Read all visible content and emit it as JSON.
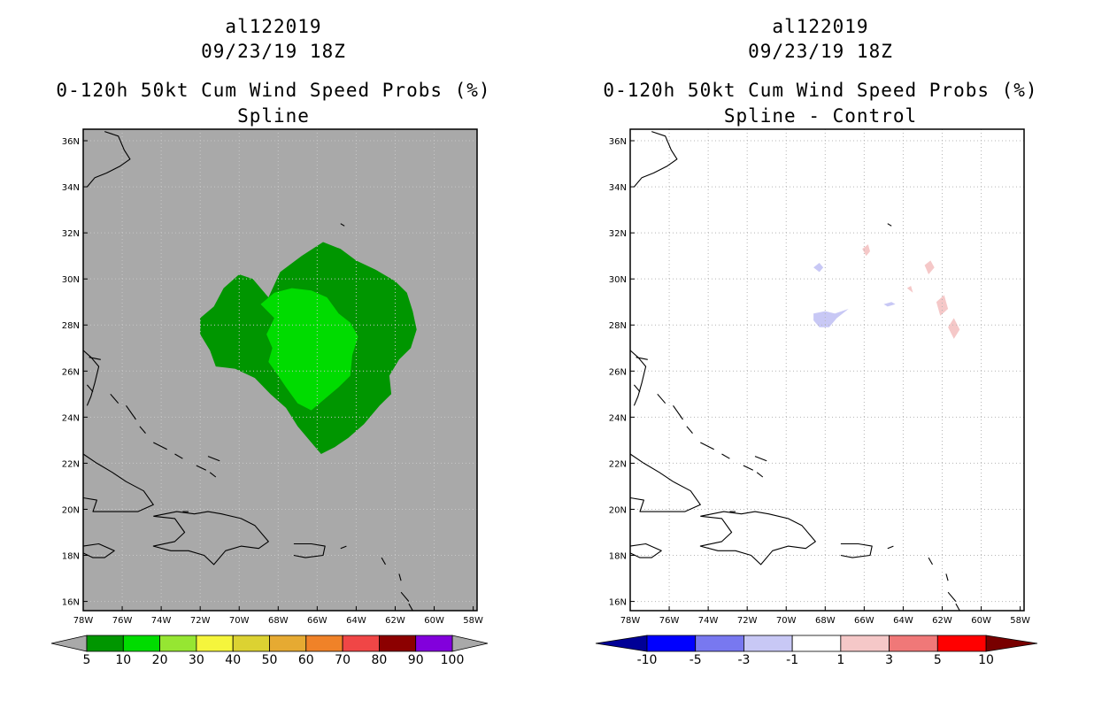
{
  "left": {
    "title_storm": "al122019",
    "title_date": "09/23/19 18Z",
    "title_product": "0-120h 50kt Cum Wind Speed Probs (%)",
    "title_method": "Spline",
    "background_color": "#a9a9a9",
    "colorbar": {
      "colors": [
        "#009600",
        "#00dc00",
        "#96e632",
        "#f5f53c",
        "#dcd232",
        "#e6aa32",
        "#f08228",
        "#f04646",
        "#8c0000",
        "#8200dc"
      ],
      "labels": [
        "5",
        "10",
        "20",
        "30",
        "40",
        "50",
        "60",
        "70",
        "80",
        "90",
        "100"
      ],
      "under_color": "#a9a9a9",
      "over_color": "#a9a9a9"
    }
  },
  "right": {
    "title_storm": "al122019",
    "title_date": "09/23/19 18Z",
    "title_product": "0-120h 50kt Cum Wind Speed Probs (%)",
    "title_method": "Spline - Control",
    "background_color": "#ffffff",
    "colorbar": {
      "colors": [
        "#0000ff",
        "#7878f0",
        "#c8c8f5",
        "#ffffff",
        "#f5c8c8",
        "#f07878",
        "#ff0000"
      ],
      "labels": [
        "-10",
        "-5",
        "-3",
        "-1",
        "1",
        "3",
        "5",
        "10"
      ],
      "under_color": "#000096",
      "over_color": "#780000"
    }
  },
  "axes": {
    "lat_labels": [
      "16N",
      "18N",
      "20N",
      "22N",
      "24N",
      "26N",
      "28N",
      "30N",
      "32N",
      "34N",
      "36N"
    ],
    "lon_labels": [
      "78W",
      "76W",
      "74W",
      "72W",
      "70W",
      "68W",
      "66W",
      "64W",
      "62W",
      "60W",
      "58W"
    ]
  },
  "map_data": {
    "lat_range": [
      15.6,
      36.5
    ],
    "lon_range": [
      -78,
      -57.8
    ],
    "prob_contours": [
      {
        "level": 5,
        "color": "#009600",
        "points": [
          [
            -68.5,
            29.2
          ],
          [
            -67.9,
            30.3
          ],
          [
            -66.8,
            31.0
          ],
          [
            -65.7,
            31.6
          ],
          [
            -64.8,
            31.3
          ],
          [
            -64.0,
            30.8
          ],
          [
            -63.0,
            30.4
          ],
          [
            -62.0,
            29.9
          ],
          [
            -61.4,
            29.4
          ],
          [
            -61.1,
            28.6
          ],
          [
            -60.9,
            27.8
          ],
          [
            -61.2,
            27.0
          ],
          [
            -61.8,
            26.5
          ],
          [
            -62.3,
            25.8
          ],
          [
            -62.2,
            25.0
          ],
          [
            -62.8,
            24.5
          ],
          [
            -63.6,
            23.7
          ],
          [
            -64.4,
            23.1
          ],
          [
            -65.1,
            22.7
          ],
          [
            -65.8,
            22.4
          ],
          [
            -66.3,
            22.9
          ],
          [
            -67.0,
            23.6
          ],
          [
            -67.6,
            24.4
          ],
          [
            -68.4,
            25.0
          ],
          [
            -69.2,
            25.7
          ],
          [
            -70.2,
            26.1
          ],
          [
            -71.2,
            26.2
          ],
          [
            -71.5,
            26.9
          ],
          [
            -72.0,
            27.6
          ],
          [
            -72.0,
            28.3
          ],
          [
            -71.3,
            28.8
          ],
          [
            -70.8,
            29.6
          ],
          [
            -70.0,
            30.2
          ],
          [
            -69.3,
            30.0
          ]
        ]
      },
      {
        "level": 10,
        "color": "#00dc00",
        "points": [
          [
            -68.9,
            28.9
          ],
          [
            -68.2,
            29.4
          ],
          [
            -67.3,
            29.6
          ],
          [
            -66.3,
            29.5
          ],
          [
            -65.5,
            29.2
          ],
          [
            -64.9,
            28.5
          ],
          [
            -64.3,
            28.1
          ],
          [
            -63.9,
            27.5
          ],
          [
            -64.2,
            26.7
          ],
          [
            -64.3,
            25.8
          ],
          [
            -64.9,
            25.3
          ],
          [
            -65.6,
            24.8
          ],
          [
            -66.3,
            24.3
          ],
          [
            -67.0,
            24.6
          ],
          [
            -67.6,
            25.3
          ],
          [
            -68.0,
            25.8
          ],
          [
            -68.5,
            26.4
          ],
          [
            -68.3,
            27.0
          ],
          [
            -68.6,
            27.6
          ],
          [
            -68.2,
            28.3
          ]
        ]
      }
    ],
    "diff_patches": [
      {
        "value": "-3",
        "color": "#c8c8f5",
        "points": [
          [
            -68.6,
            28.5
          ],
          [
            -68.0,
            28.6
          ],
          [
            -67.5,
            28.5
          ],
          [
            -66.8,
            28.7
          ],
          [
            -67.4,
            28.3
          ],
          [
            -67.8,
            27.9
          ],
          [
            -68.3,
            27.9
          ],
          [
            -68.6,
            28.2
          ]
        ]
      },
      {
        "value": "-3",
        "color": "#c8c8f5",
        "points": [
          [
            -68.6,
            30.5
          ],
          [
            -68.3,
            30.7
          ],
          [
            -68.1,
            30.5
          ],
          [
            -68.3,
            30.3
          ]
        ]
      },
      {
        "value": "-3",
        "color": "#c8c8f5",
        "points": [
          [
            -65.0,
            28.9
          ],
          [
            -64.6,
            29.0
          ],
          [
            -64.4,
            28.9
          ],
          [
            -64.8,
            28.8
          ]
        ]
      },
      {
        "value": "3",
        "color": "#f5c8c8",
        "points": [
          [
            -66.1,
            31.3
          ],
          [
            -65.8,
            31.5
          ],
          [
            -65.7,
            31.2
          ],
          [
            -65.9,
            31.0
          ]
        ]
      },
      {
        "value": "3",
        "color": "#f5c8c8",
        "points": [
          [
            -62.9,
            30.6
          ],
          [
            -62.6,
            30.8
          ],
          [
            -62.4,
            30.5
          ],
          [
            -62.7,
            30.2
          ]
        ]
      },
      {
        "value": "3",
        "color": "#f5c8c8",
        "points": [
          [
            -62.3,
            29.0
          ],
          [
            -61.9,
            29.3
          ],
          [
            -61.7,
            28.7
          ],
          [
            -62.1,
            28.4
          ]
        ]
      },
      {
        "value": "3",
        "color": "#f5c8c8",
        "points": [
          [
            -61.7,
            27.9
          ],
          [
            -61.4,
            28.3
          ],
          [
            -61.1,
            27.8
          ],
          [
            -61.4,
            27.4
          ]
        ]
      },
      {
        "value": "3",
        "color": "#f5c8c8",
        "points": [
          [
            -63.8,
            29.6
          ],
          [
            -63.6,
            29.7
          ],
          [
            -63.5,
            29.4
          ]
        ]
      }
    ]
  }
}
